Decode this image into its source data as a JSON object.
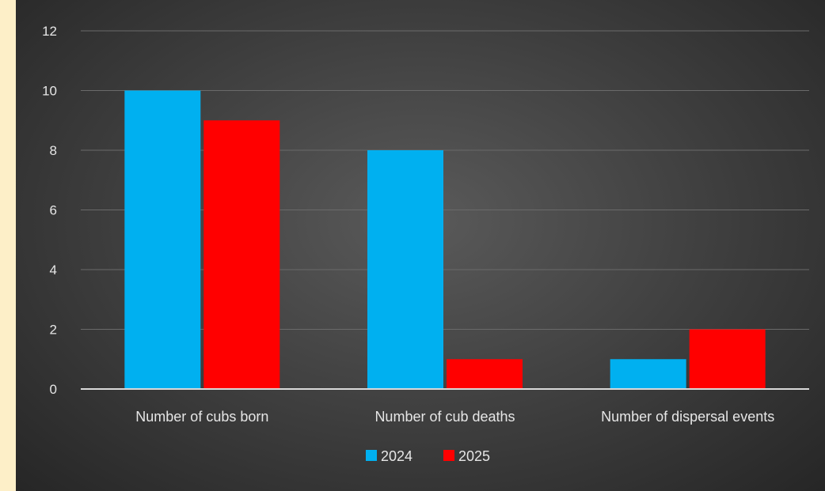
{
  "chart_data": {
    "type": "bar",
    "title": "",
    "xlabel": "",
    "ylabel": "",
    "categories": [
      "Number of cubs born",
      "Number of cub deaths",
      "Number of dispersal events"
    ],
    "series": [
      {
        "name": "2024",
        "values": [
          10,
          8,
          1
        ],
        "color": "#00b0f0"
      },
      {
        "name": "2025",
        "values": [
          9,
          1,
          2
        ],
        "color": "#ff0000"
      }
    ],
    "ylim": [
      0,
      12
    ],
    "yticks": [
      "0",
      "2",
      "4",
      "6",
      "8",
      "10",
      "12"
    ],
    "grid": true,
    "legend": "bottom-center"
  }
}
